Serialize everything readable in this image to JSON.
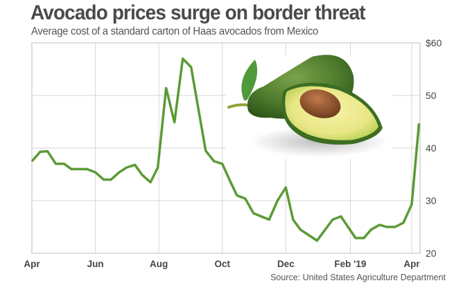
{
  "chart_data": {
    "type": "line",
    "title": "Avocado prices surge on border threat",
    "subtitle": "Average cost of a standard carton of Haas avocados from Mexico",
    "source": "Source: United States Agriculture Department",
    "xlabel": "",
    "ylabel": "",
    "ylim": [
      20,
      60
    ],
    "xlim": [
      "2018-04-01",
      "2019-04-10"
    ],
    "yticks": [
      {
        "value": 60,
        "label": "$60"
      },
      {
        "value": 50,
        "label": "50"
      },
      {
        "value": 40,
        "label": "40"
      },
      {
        "value": 30,
        "label": "30"
      },
      {
        "value": 20,
        "label": "20"
      }
    ],
    "xticks": [
      {
        "date": "2018-04-01",
        "label": "Apr"
      },
      {
        "date": "2018-06-01",
        "label": "Jun"
      },
      {
        "date": "2018-08-01",
        "label": "Aug"
      },
      {
        "date": "2018-10-01",
        "label": "Oct"
      },
      {
        "date": "2018-12-01",
        "label": "Dec"
      },
      {
        "date": "2019-02-01",
        "label": "Feb '19"
      },
      {
        "date": "2019-04-01",
        "label": "Apr"
      }
    ],
    "grid": true,
    "y_axis_side": "right",
    "line_color": "#5a9a35",
    "series": [
      {
        "x": [
          "2018-04-01",
          "2018-04-09",
          "2018-04-16",
          "2018-04-24",
          "2018-05-02",
          "2018-05-09",
          "2018-05-16",
          "2018-05-24",
          "2018-06-01",
          "2018-06-09",
          "2018-06-16",
          "2018-06-24",
          "2018-07-01",
          "2018-07-09",
          "2018-07-16",
          "2018-07-24",
          "2018-07-31",
          "2018-08-08",
          "2018-08-16",
          "2018-08-24",
          "2018-09-01",
          "2018-09-15",
          "2018-09-23",
          "2018-10-01",
          "2018-10-09",
          "2018-10-15",
          "2018-10-23",
          "2018-10-31",
          "2018-11-15",
          "2018-11-23",
          "2018-12-01",
          "2018-12-08",
          "2018-12-15",
          "2018-12-31",
          "2019-01-15",
          "2019-01-23",
          "2019-02-06",
          "2019-02-14",
          "2019-02-21",
          "2019-03-01",
          "2019-03-08",
          "2019-03-16",
          "2019-03-24",
          "2019-04-01",
          "2019-04-08"
        ],
        "values": [
          37.5,
          39.3,
          39.4,
          37.0,
          37.0,
          36.0,
          36.0,
          36.0,
          35.4,
          34.0,
          34.0,
          35.4,
          36.3,
          36.8,
          34.9,
          33.5,
          36.3,
          51.4,
          44.9,
          57.0,
          55.4,
          39.5,
          37.5,
          37.0,
          33.5,
          31.0,
          30.4,
          27.6,
          26.4,
          30.0,
          32.5,
          26.4,
          24.5,
          22.4,
          26.4,
          27.0,
          22.9,
          22.9,
          24.5,
          25.4,
          25.0,
          25.0,
          25.8,
          29.3,
          44.7
        ]
      }
    ]
  }
}
